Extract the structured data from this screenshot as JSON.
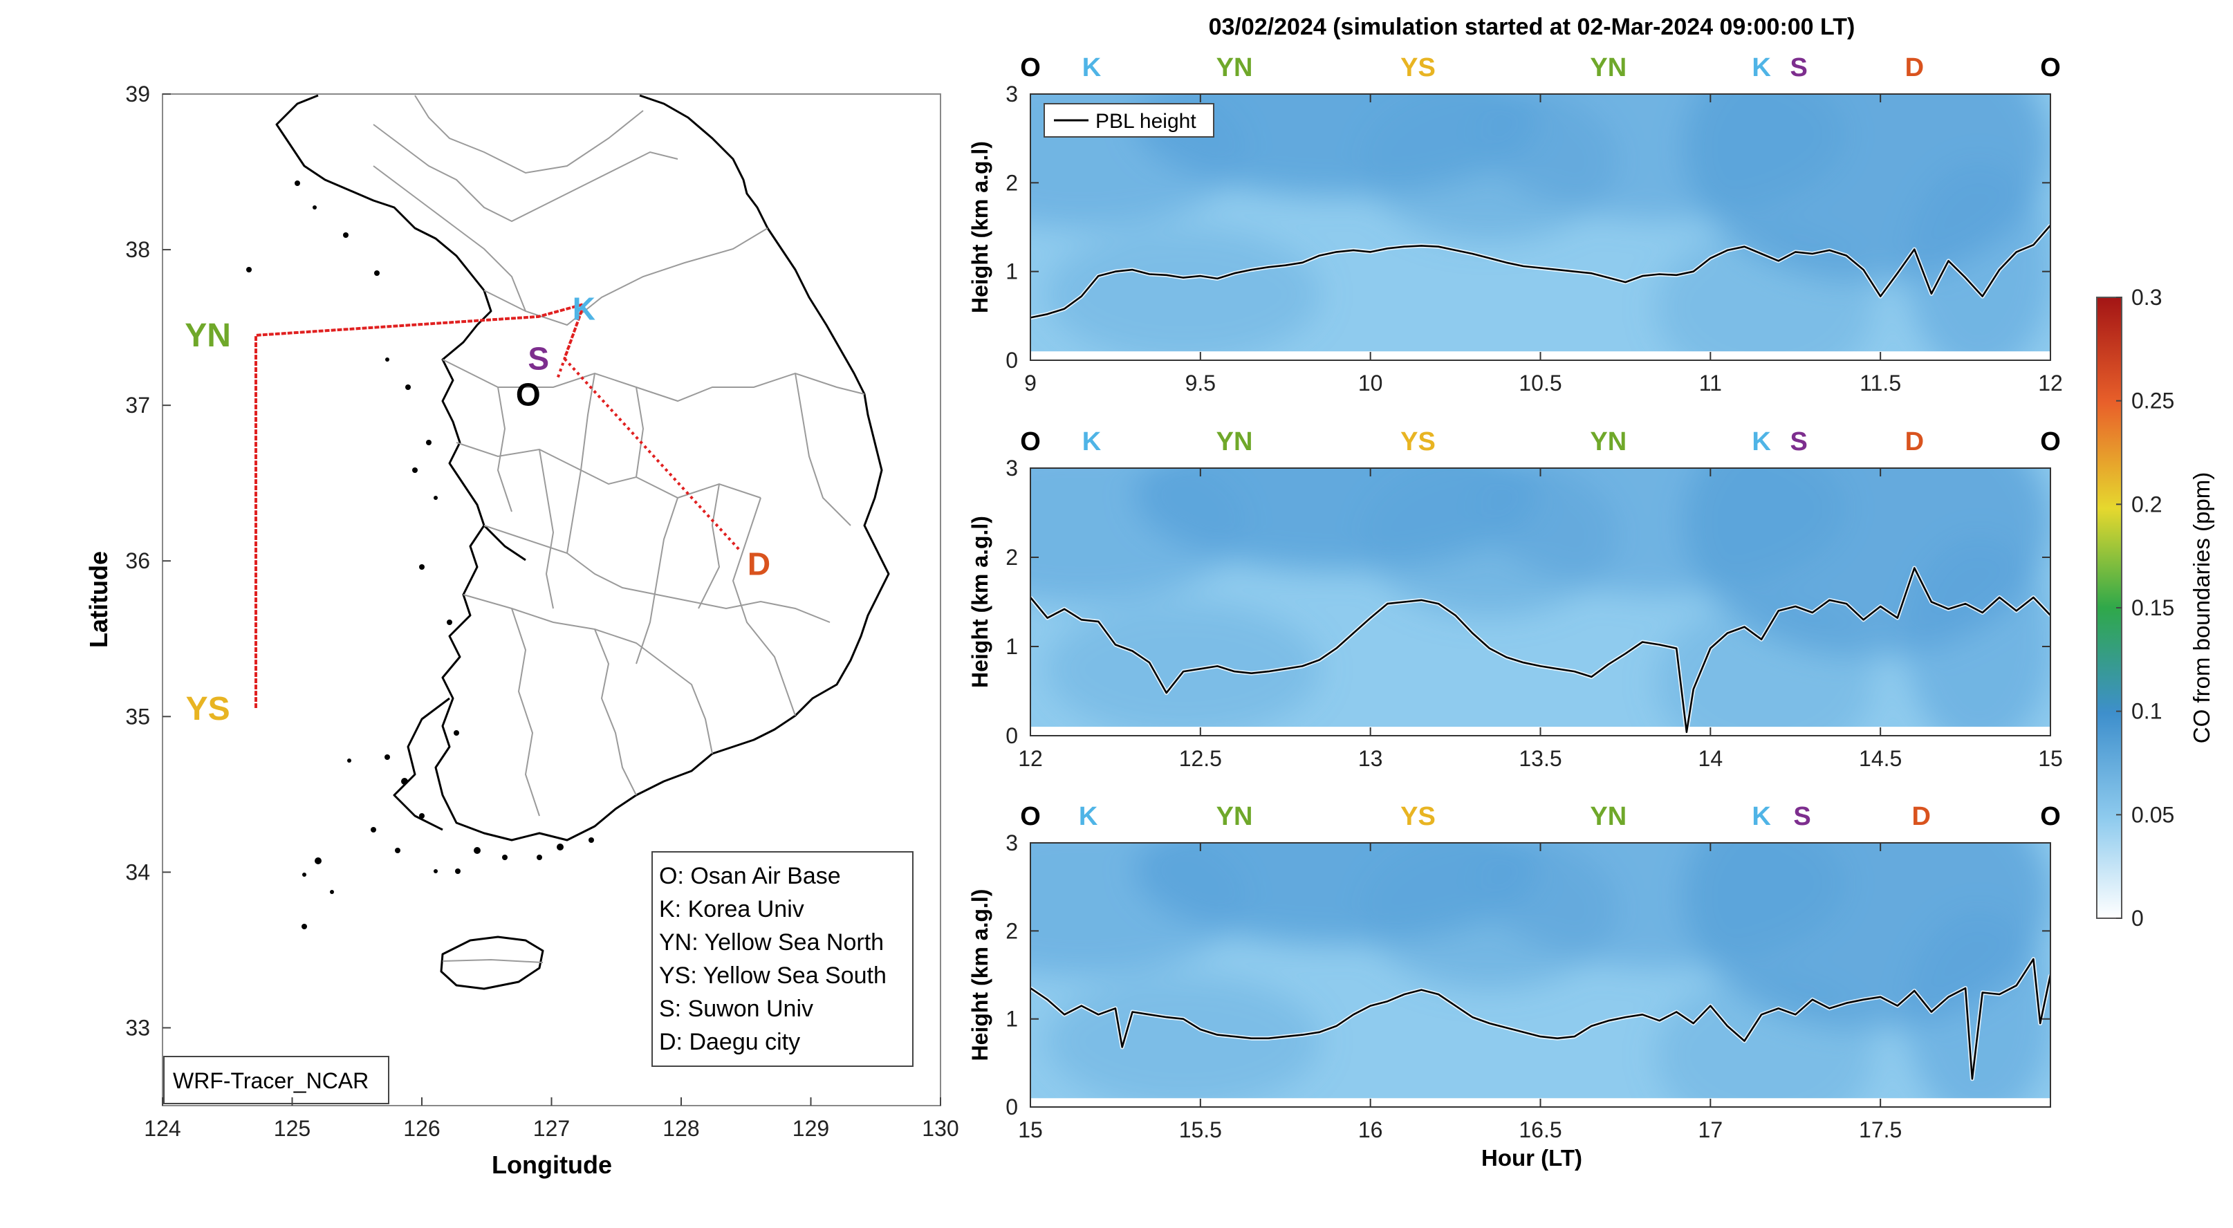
{
  "title": "03/02/2024 (simulation started at 02-Mar-2024 09:00:00 LT)",
  "colors": {
    "O": "#000000",
    "K": "#4FB4E6",
    "YN": "#6FA82A",
    "YS": "#E8B422",
    "S": "#7D2E8E",
    "D": "#D9531E",
    "route": "#E02020",
    "pbl_line": "#000000",
    "field_light": "#8FCBEE",
    "field_dark": "#5AA3DA"
  },
  "map": {
    "xlabel": "Longitude",
    "ylabel": "Latitude",
    "xlim": [
      124,
      130
    ],
    "ylim": [
      32.5,
      39
    ],
    "xticks": [
      "124",
      "125",
      "126",
      "127",
      "128",
      "129",
      "130"
    ],
    "yticks": [
      "33",
      "34",
      "35",
      "36",
      "37",
      "38",
      "39"
    ],
    "corner_label": "WRF-Tracer_NCAR",
    "legend": [
      "O: Osan Air Base",
      "K: Korea Univ",
      "YN: Yellow Sea North",
      "YS: Yellow Sea South",
      "S: Suwon Univ",
      "D: Daegu city"
    ],
    "sites": [
      {
        "code": "K",
        "lon": 127.25,
        "lat": 37.62
      },
      {
        "code": "S",
        "lon": 126.9,
        "lat": 37.3
      },
      {
        "code": "O",
        "lon": 126.82,
        "lat": 37.07
      },
      {
        "code": "YN",
        "lon": 124.35,
        "lat": 37.45
      },
      {
        "code": "YS",
        "lon": 124.35,
        "lat": 35.05
      },
      {
        "code": "D",
        "lon": 128.6,
        "lat": 35.98
      }
    ],
    "route": [
      [
        127.05,
        37.18
      ],
      [
        127.25,
        37.65
      ],
      [
        126.9,
        37.57
      ],
      [
        124.72,
        37.45
      ],
      [
        124.72,
        35.05
      ],
      [
        124.72,
        37.45
      ],
      [
        126.9,
        37.57
      ],
      [
        127.25,
        37.65
      ],
      [
        127.1,
        37.3
      ],
      [
        128.45,
        36.07
      ]
    ]
  },
  "chart_data": {
    "type": "heatmap",
    "title": "03/02/2024 (simulation started at 02-Mar-2024 09:00:00 LT)",
    "xlabel": "Hour (LT)",
    "ylabel": "Height (km a.g.l)",
    "legend": [
      "PBL height"
    ],
    "legend_position": "top-left",
    "colorbar": {
      "label": "CO from boundaries (ppm)",
      "range": [
        0,
        0.3
      ],
      "ticks": [
        "0",
        "0.05",
        "0.1",
        "0.15",
        "0.2",
        "0.25",
        "0.3"
      ]
    },
    "panels": [
      {
        "xlim": [
          9,
          12
        ],
        "ylim": [
          0,
          3
        ],
        "xticks": [
          "9",
          "9.5",
          "10",
          "10.5",
          "11",
          "11.5",
          "12"
        ],
        "yticks": [
          "0",
          "1",
          "2",
          "3"
        ],
        "site_markers": [
          {
            "code": "O",
            "t": 9.0
          },
          {
            "code": "K",
            "t": 9.18
          },
          {
            "code": "YN",
            "t": 9.6
          },
          {
            "code": "YS",
            "t": 10.14
          },
          {
            "code": "YN",
            "t": 10.7
          },
          {
            "code": "K",
            "t": 11.15
          },
          {
            "code": "S",
            "t": 11.26
          },
          {
            "code": "D",
            "t": 11.6
          },
          {
            "code": "O",
            "t": 12.0
          }
        ],
        "pbl": {
          "t": [
            9.0,
            9.05,
            9.1,
            9.15,
            9.2,
            9.25,
            9.3,
            9.35,
            9.4,
            9.45,
            9.5,
            9.55,
            9.6,
            9.65,
            9.7,
            9.75,
            9.8,
            9.85,
            9.9,
            9.95,
            10.0,
            10.05,
            10.1,
            10.15,
            10.2,
            10.25,
            10.3,
            10.35,
            10.4,
            10.45,
            10.5,
            10.55,
            10.6,
            10.65,
            10.7,
            10.75,
            10.8,
            10.85,
            10.9,
            10.95,
            11.0,
            11.05,
            11.1,
            11.15,
            11.2,
            11.25,
            11.3,
            11.35,
            11.4,
            11.45,
            11.5,
            11.55,
            11.6,
            11.65,
            11.7,
            11.75,
            11.8,
            11.85,
            11.9,
            11.95,
            12.0
          ],
          "h": [
            0.48,
            0.52,
            0.58,
            0.72,
            0.95,
            1.0,
            1.02,
            0.97,
            0.96,
            0.93,
            0.95,
            0.92,
            0.98,
            1.02,
            1.05,
            1.07,
            1.1,
            1.18,
            1.22,
            1.24,
            1.22,
            1.26,
            1.28,
            1.29,
            1.28,
            1.24,
            1.2,
            1.15,
            1.1,
            1.06,
            1.04,
            1.02,
            1.0,
            0.98,
            0.93,
            0.88,
            0.95,
            0.97,
            0.96,
            1.0,
            1.15,
            1.24,
            1.28,
            1.2,
            1.12,
            1.22,
            1.2,
            1.24,
            1.18,
            1.02,
            0.72,
            0.98,
            1.25,
            0.75,
            1.12,
            0.93,
            0.72,
            1.02,
            1.22,
            1.3,
            1.52
          ]
        }
      },
      {
        "xlim": [
          12,
          15
        ],
        "ylim": [
          0,
          3
        ],
        "xticks": [
          "12",
          "12.5",
          "13",
          "13.5",
          "14",
          "14.5",
          "15"
        ],
        "yticks": [
          "0",
          "1",
          "2",
          "3"
        ],
        "site_markers": [
          {
            "code": "O",
            "t": 12.0
          },
          {
            "code": "K",
            "t": 12.18
          },
          {
            "code": "YN",
            "t": 12.6
          },
          {
            "code": "YS",
            "t": 13.14
          },
          {
            "code": "YN",
            "t": 13.7
          },
          {
            "code": "K",
            "t": 14.15
          },
          {
            "code": "S",
            "t": 14.26
          },
          {
            "code": "D",
            "t": 14.6
          },
          {
            "code": "O",
            "t": 15.0
          }
        ],
        "pbl": {
          "t": [
            12.0,
            12.05,
            12.1,
            12.15,
            12.2,
            12.25,
            12.3,
            12.35,
            12.4,
            12.45,
            12.5,
            12.55,
            12.6,
            12.65,
            12.7,
            12.75,
            12.8,
            12.85,
            12.9,
            12.95,
            13.0,
            13.05,
            13.1,
            13.15,
            13.2,
            13.25,
            13.3,
            13.35,
            13.4,
            13.45,
            13.5,
            13.55,
            13.6,
            13.65,
            13.7,
            13.75,
            13.8,
            13.85,
            13.9,
            13.93,
            13.95,
            14.0,
            14.05,
            14.1,
            14.15,
            14.2,
            14.25,
            14.3,
            14.35,
            14.4,
            14.45,
            14.5,
            14.55,
            14.6,
            14.65,
            14.7,
            14.75,
            14.8,
            14.85,
            14.9,
            14.95,
            15.0
          ],
          "h": [
            1.55,
            1.32,
            1.42,
            1.3,
            1.28,
            1.02,
            0.95,
            0.82,
            0.48,
            0.72,
            0.75,
            0.78,
            0.72,
            0.7,
            0.72,
            0.75,
            0.78,
            0.85,
            0.98,
            1.15,
            1.32,
            1.48,
            1.5,
            1.52,
            1.48,
            1.35,
            1.15,
            0.98,
            0.88,
            0.82,
            0.78,
            0.75,
            0.72,
            0.66,
            0.8,
            0.92,
            1.05,
            1.02,
            0.98,
            0.04,
            0.52,
            0.98,
            1.15,
            1.22,
            1.08,
            1.4,
            1.45,
            1.38,
            1.52,
            1.48,
            1.3,
            1.45,
            1.32,
            1.88,
            1.5,
            1.42,
            1.48,
            1.38,
            1.55,
            1.4,
            1.55,
            1.35
          ]
        }
      },
      {
        "xlim": [
          15,
          18
        ],
        "ylim": [
          0,
          3
        ],
        "xticks": [
          "15",
          "15.5",
          "16",
          "16.5",
          "17",
          "17.5"
        ],
        "yticks": [
          "0",
          "1",
          "2",
          "3"
        ],
        "site_markers": [
          {
            "code": "O",
            "t": 15.0
          },
          {
            "code": "K",
            "t": 15.17
          },
          {
            "code": "YN",
            "t": 15.6
          },
          {
            "code": "YS",
            "t": 16.14
          },
          {
            "code": "YN",
            "t": 16.7
          },
          {
            "code": "K",
            "t": 17.15
          },
          {
            "code": "S",
            "t": 17.27
          },
          {
            "code": "D",
            "t": 17.62
          },
          {
            "code": "O",
            "t": 18.0
          }
        ],
        "pbl": {
          "t": [
            15.0,
            15.05,
            15.1,
            15.15,
            15.2,
            15.25,
            15.27,
            15.3,
            15.35,
            15.4,
            15.45,
            15.5,
            15.55,
            15.6,
            15.65,
            15.7,
            15.75,
            15.8,
            15.85,
            15.9,
            15.95,
            16.0,
            16.05,
            16.1,
            16.15,
            16.2,
            16.25,
            16.3,
            16.35,
            16.4,
            16.45,
            16.5,
            16.55,
            16.6,
            16.65,
            16.7,
            16.75,
            16.8,
            16.85,
            16.9,
            16.95,
            17.0,
            17.05,
            17.1,
            17.15,
            17.2,
            17.25,
            17.3,
            17.35,
            17.4,
            17.45,
            17.5,
            17.55,
            17.6,
            17.65,
            17.7,
            17.75,
            17.77,
            17.8,
            17.85,
            17.9,
            17.95,
            17.97,
            18.0
          ],
          "h": [
            1.35,
            1.22,
            1.05,
            1.15,
            1.05,
            1.12,
            0.68,
            1.08,
            1.05,
            1.02,
            1.0,
            0.88,
            0.82,
            0.8,
            0.78,
            0.78,
            0.8,
            0.82,
            0.85,
            0.92,
            1.05,
            1.15,
            1.2,
            1.28,
            1.33,
            1.28,
            1.15,
            1.02,
            0.95,
            0.9,
            0.85,
            0.8,
            0.78,
            0.8,
            0.92,
            0.98,
            1.02,
            1.05,
            0.98,
            1.08,
            0.95,
            1.15,
            0.92,
            0.75,
            1.05,
            1.12,
            1.05,
            1.22,
            1.12,
            1.18,
            1.22,
            1.25,
            1.15,
            1.32,
            1.08,
            1.25,
            1.35,
            0.32,
            1.3,
            1.28,
            1.38,
            1.68,
            0.95,
            1.5
          ]
        }
      }
    ]
  }
}
